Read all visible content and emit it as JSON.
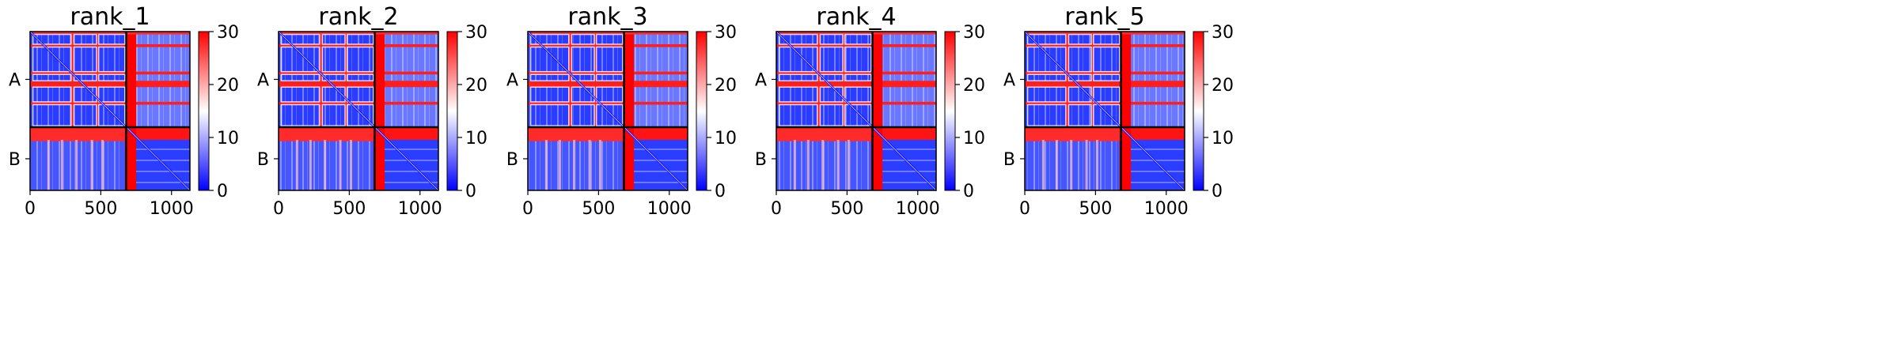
{
  "figure_title": "",
  "chart_data": [
    {
      "type": "heatmap",
      "title": "rank_1",
      "xlabel": "",
      "ylabel": "",
      "xlim": [
        0,
        1130
      ],
      "x_ticks": [
        0,
        500,
        1000
      ],
      "y_ticks": [
        "A",
        "B"
      ],
      "colorbar": {
        "min": 0,
        "max": 30,
        "ticks": [
          0,
          10,
          20,
          30
        ],
        "colormap": "bwr"
      },
      "chains": [
        {
          "name": "A",
          "start": 0,
          "end": 680
        },
        {
          "name": "B",
          "start": 680,
          "end": 1130
        }
      ],
      "boundary": 680
    },
    {
      "type": "heatmap",
      "title": "rank_2",
      "xlabel": "",
      "ylabel": "",
      "xlim": [
        0,
        1130
      ],
      "x_ticks": [
        0,
        500,
        1000
      ],
      "y_ticks": [
        "A",
        "B"
      ],
      "colorbar": {
        "min": 0,
        "max": 30,
        "ticks": [
          0,
          10,
          20,
          30
        ],
        "colormap": "bwr"
      },
      "chains": [
        {
          "name": "A",
          "start": 0,
          "end": 680
        },
        {
          "name": "B",
          "start": 680,
          "end": 1130
        }
      ],
      "boundary": 680
    },
    {
      "type": "heatmap",
      "title": "rank_3",
      "xlabel": "",
      "ylabel": "",
      "xlim": [
        0,
        1130
      ],
      "x_ticks": [
        0,
        500,
        1000
      ],
      "y_ticks": [
        "A",
        "B"
      ],
      "colorbar": {
        "min": 0,
        "max": 30,
        "ticks": [
          0,
          10,
          20,
          30
        ],
        "colormap": "bwr"
      },
      "chains": [
        {
          "name": "A",
          "start": 0,
          "end": 680
        },
        {
          "name": "B",
          "start": 680,
          "end": 1130
        }
      ],
      "boundary": 680
    },
    {
      "type": "heatmap",
      "title": "rank_4",
      "xlabel": "",
      "ylabel": "",
      "xlim": [
        0,
        1130
      ],
      "x_ticks": [
        0,
        500,
        1000
      ],
      "y_ticks": [
        "A",
        "B"
      ],
      "colorbar": {
        "min": 0,
        "max": 30,
        "ticks": [
          0,
          10,
          20,
          30
        ],
        "colormap": "bwr"
      },
      "chains": [
        {
          "name": "A",
          "start": 0,
          "end": 680
        },
        {
          "name": "B",
          "start": 680,
          "end": 1130
        }
      ],
      "boundary": 680
    },
    {
      "type": "heatmap",
      "title": "rank_5",
      "xlabel": "",
      "ylabel": "",
      "xlim": [
        0,
        1130
      ],
      "x_ticks": [
        0,
        500,
        1000
      ],
      "y_ticks": [
        "A",
        "B"
      ],
      "colorbar": {
        "min": 0,
        "max": 30,
        "ticks": [
          0,
          10,
          20,
          30
        ],
        "colormap": "bwr"
      },
      "chains": [
        {
          "name": "A",
          "start": 0,
          "end": 680
        },
        {
          "name": "B",
          "start": 680,
          "end": 1130
        }
      ],
      "boundary": 680
    }
  ],
  "colors": {
    "low": "#0000ff",
    "mid": "#ffffff",
    "high": "#ff0000",
    "axis": "#000000"
  }
}
